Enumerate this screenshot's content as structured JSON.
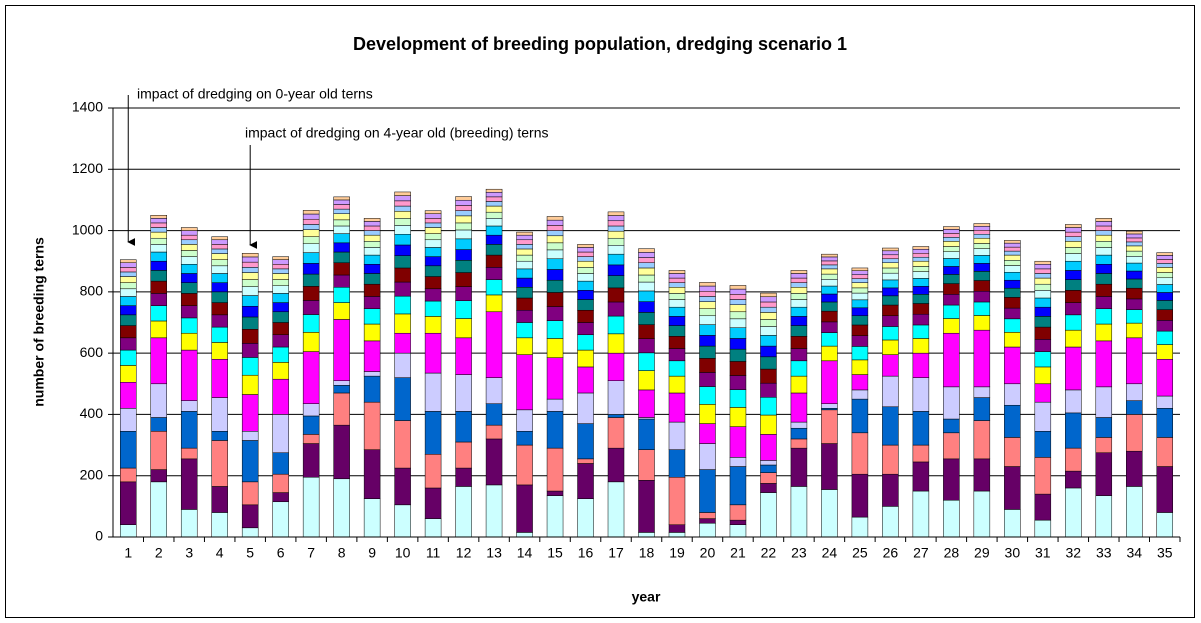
{
  "chart_data": {
    "type": "stacked_bar",
    "title": "Development of breeding population, dredging scenario 1",
    "x_label": "year",
    "y_label": "number of breeding terns",
    "annotations": [
      "impact of dredging on 0-year old terns",
      "impact of dredging on 4-year old (breeding) terns"
    ],
    "categories": [
      "1",
      "2",
      "3",
      "4",
      "5",
      "6",
      "7",
      "8",
      "9",
      "10",
      "11",
      "12",
      "13",
      "14",
      "15",
      "16",
      "17",
      "18",
      "19",
      "20",
      "21",
      "22",
      "23",
      "24",
      "25",
      "26",
      "27",
      "28",
      "29",
      "30",
      "31",
      "32",
      "33",
      "34",
      "35"
    ],
    "ylim": [
      0,
      1400
    ],
    "yticks": [
      0,
      200,
      400,
      600,
      800,
      1000,
      1200,
      1400
    ],
    "grid": true,
    "series": [
      {
        "color": "#CCFFFF",
        "values": [
          40,
          180,
          90,
          80,
          30,
          115,
          195,
          190,
          125,
          105,
          60,
          165,
          170,
          15,
          135,
          125,
          180,
          15,
          15,
          45,
          40,
          145,
          165,
          155,
          65,
          100,
          150,
          120,
          150,
          90,
          55,
          160,
          135,
          165,
          80
        ]
      },
      {
        "color": "#660066",
        "values": [
          140,
          40,
          165,
          85,
          75,
          30,
          110,
          175,
          160,
          120,
          100,
          60,
          150,
          155,
          15,
          115,
          110,
          170,
          25,
          15,
          15,
          30,
          125,
          150,
          140,
          105,
          95,
          135,
          105,
          140,
          85,
          55,
          140,
          115,
          150
        ]
      },
      {
        "color": "#FF8080",
        "values": [
          45,
          125,
          35,
          150,
          75,
          60,
          30,
          105,
          155,
          155,
          110,
          85,
          45,
          130,
          140,
          15,
          100,
          100,
          155,
          20,
          50,
          35,
          30,
          110,
          135,
          95,
          55,
          85,
          125,
          95,
          120,
          75,
          50,
          120,
          95
        ]
      },
      {
        "color": "#0066CC",
        "values": [
          120,
          45,
          120,
          30,
          135,
          70,
          60,
          25,
          85,
          140,
          140,
          100,
          70,
          45,
          120,
          115,
          10,
          100,
          90,
          140,
          125,
          25,
          35,
          5,
          110,
          125,
          110,
          45,
          75,
          105,
          85,
          115,
          65,
          45,
          95
        ]
      },
      {
        "color": "#CCCCFF",
        "values": [
          75,
          110,
          35,
          110,
          30,
          125,
          40,
          15,
          15,
          80,
          125,
          120,
          85,
          70,
          40,
          100,
          110,
          5,
          90,
          85,
          30,
          15,
          20,
          15,
          30,
          100,
          110,
          105,
          35,
          70,
          95,
          75,
          100,
          55,
          40
        ]
      },
      {
        "color": "#FF00FF",
        "values": [
          85,
          150,
          165,
          125,
          120,
          115,
          170,
          200,
          100,
          65,
          130,
          120,
          215,
          180,
          135,
          85,
          90,
          90,
          95,
          65,
          100,
          85,
          95,
          140,
          50,
          70,
          80,
          175,
          185,
          120,
          60,
          140,
          150,
          150,
          120
        ]
      },
      {
        "color": "#FFFF00",
        "values": [
          55,
          55,
          55,
          55,
          63,
          55,
          63,
          55,
          55,
          63,
          55,
          63,
          55,
          55,
          63,
          55,
          63,
          63,
          55,
          63,
          63,
          63,
          55,
          48,
          48,
          48,
          48,
          48,
          48,
          48,
          55,
          55,
          55,
          48,
          48
        ]
      },
      {
        "color": "#00FFFF",
        "values": [
          50,
          50,
          50,
          50,
          58,
          50,
          58,
          50,
          50,
          58,
          50,
          58,
          50,
          50,
          58,
          50,
          58,
          58,
          50,
          58,
          58,
          58,
          50,
          44,
          44,
          44,
          44,
          44,
          44,
          44,
          50,
          50,
          50,
          44,
          44
        ]
      },
      {
        "color": "#800080",
        "values": [
          40,
          40,
          40,
          40,
          46,
          40,
          46,
          40,
          40,
          46,
          40,
          46,
          40,
          40,
          46,
          40,
          46,
          46,
          40,
          46,
          46,
          46,
          40,
          35,
          35,
          35,
          35,
          35,
          35,
          35,
          40,
          40,
          40,
          35,
          35
        ]
      },
      {
        "color": "#800000",
        "values": [
          40,
          40,
          40,
          40,
          46,
          40,
          46,
          40,
          40,
          46,
          40,
          46,
          40,
          40,
          46,
          40,
          46,
          46,
          40,
          46,
          46,
          46,
          40,
          35,
          35,
          35,
          35,
          35,
          35,
          35,
          40,
          40,
          40,
          35,
          35
        ]
      },
      {
        "color": "#008080",
        "values": [
          35,
          35,
          35,
          35,
          40,
          35,
          40,
          35,
          35,
          40,
          35,
          40,
          35,
          35,
          40,
          35,
          40,
          40,
          35,
          40,
          40,
          40,
          35,
          30,
          30,
          30,
          30,
          30,
          30,
          30,
          35,
          35,
          35,
          30,
          30
        ]
      },
      {
        "color": "#0000FF",
        "values": [
          30,
          30,
          30,
          30,
          35,
          30,
          35,
          30,
          30,
          35,
          30,
          35,
          30,
          30,
          35,
          30,
          35,
          35,
          30,
          35,
          35,
          35,
          30,
          26,
          26,
          26,
          26,
          26,
          26,
          26,
          30,
          30,
          30,
          26,
          26
        ]
      },
      {
        "color": "#00CCFF",
        "values": [
          30,
          30,
          30,
          30,
          35,
          30,
          35,
          30,
          30,
          35,
          30,
          35,
          30,
          30,
          35,
          30,
          35,
          35,
          30,
          35,
          35,
          35,
          30,
          26,
          26,
          26,
          26,
          26,
          26,
          26,
          30,
          30,
          30,
          26,
          26
        ]
      },
      {
        "color": "#CCFFFF",
        "values": [
          25,
          25,
          25,
          25,
          29,
          25,
          29,
          25,
          25,
          29,
          25,
          29,
          25,
          25,
          29,
          25,
          29,
          29,
          25,
          29,
          29,
          29,
          25,
          22,
          22,
          22,
          22,
          22,
          22,
          22,
          25,
          25,
          25,
          22,
          22
        ]
      },
      {
        "color": "#CCFFCC",
        "values": [
          20,
          20,
          20,
          20,
          23,
          20,
          23,
          20,
          20,
          23,
          20,
          23,
          20,
          20,
          23,
          20,
          23,
          23,
          20,
          23,
          23,
          23,
          20,
          17,
          17,
          17,
          17,
          17,
          17,
          17,
          20,
          20,
          20,
          17,
          17
        ]
      },
      {
        "color": "#FFFF99",
        "values": [
          20,
          20,
          20,
          20,
          23,
          20,
          23,
          20,
          20,
          23,
          20,
          23,
          20,
          20,
          23,
          20,
          23,
          23,
          20,
          23,
          23,
          23,
          20,
          17,
          17,
          17,
          17,
          17,
          17,
          17,
          20,
          20,
          20,
          17,
          17
        ]
      },
      {
        "color": "#99CCFF",
        "values": [
          15,
          15,
          15,
          15,
          17,
          15,
          17,
          15,
          15,
          17,
          15,
          17,
          15,
          15,
          17,
          15,
          17,
          17,
          15,
          17,
          17,
          17,
          15,
          13,
          13,
          13,
          13,
          13,
          13,
          13,
          15,
          15,
          15,
          13,
          13
        ]
      },
      {
        "color": "#FF99CC",
        "values": [
          15,
          15,
          15,
          15,
          17,
          15,
          17,
          15,
          15,
          17,
          15,
          17,
          15,
          15,
          17,
          15,
          17,
          17,
          15,
          17,
          17,
          17,
          15,
          13,
          13,
          13,
          13,
          13,
          13,
          13,
          15,
          15,
          15,
          13,
          13
        ]
      },
      {
        "color": "#CC99FF",
        "values": [
          15,
          15,
          15,
          15,
          17,
          15,
          17,
          15,
          15,
          17,
          15,
          17,
          15,
          15,
          17,
          15,
          17,
          17,
          15,
          17,
          17,
          17,
          15,
          13,
          13,
          13,
          13,
          13,
          13,
          13,
          15,
          15,
          15,
          13,
          13
        ]
      },
      {
        "color": "#FFCC99",
        "values": [
          10,
          10,
          10,
          10,
          12,
          10,
          12,
          10,
          10,
          12,
          10,
          12,
          10,
          10,
          12,
          10,
          12,
          12,
          10,
          12,
          12,
          12,
          10,
          9,
          9,
          9,
          9,
          9,
          9,
          9,
          10,
          10,
          10,
          9,
          9
        ]
      }
    ]
  }
}
